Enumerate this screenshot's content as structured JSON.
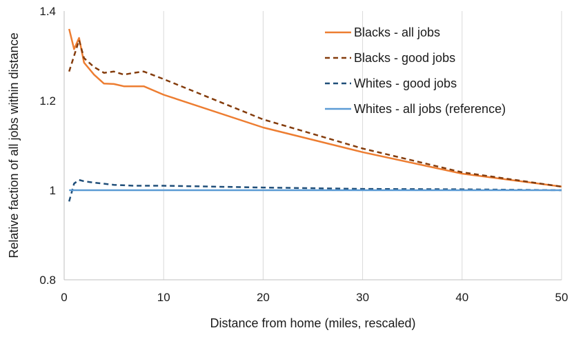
{
  "chart_data": {
    "type": "line",
    "title": "",
    "xlabel": "Distance from home (miles, rescaled)",
    "ylabel": "Relative faction of all jobs  within distance",
    "xlim": [
      0,
      50
    ],
    "ylim": [
      0.8,
      1.4
    ],
    "xticks": [
      0,
      10,
      20,
      30,
      40,
      50
    ],
    "xtick_labels": [
      "0",
      "10",
      "20",
      "30",
      "40",
      "50"
    ],
    "yticks": [
      0.8,
      1.0,
      1.2,
      1.4
    ],
    "ytick_labels": [
      "0.8",
      "1",
      "1.2",
      "1.4"
    ],
    "grid": "vertical",
    "legend_position": "top-right",
    "series": [
      {
        "name": "Blacks - all jobs",
        "color": "#ed7d31",
        "dash": "solid",
        "x": [
          0.5,
          1,
          1.5,
          2,
          3,
          4,
          5,
          6,
          7,
          8,
          10,
          20,
          30,
          40,
          50
        ],
        "y": [
          1.36,
          1.315,
          1.34,
          1.285,
          1.258,
          1.238,
          1.237,
          1.232,
          1.232,
          1.232,
          1.213,
          1.14,
          1.085,
          1.037,
          1.008
        ]
      },
      {
        "name": "Blacks - good jobs",
        "color": "#843c0c",
        "dash": "dashed",
        "x": [
          0.5,
          1,
          1.5,
          2,
          3,
          4,
          5,
          6,
          7,
          8,
          10,
          20,
          30,
          40,
          50
        ],
        "y": [
          1.265,
          1.3,
          1.335,
          1.295,
          1.275,
          1.262,
          1.265,
          1.258,
          1.262,
          1.265,
          1.248,
          1.158,
          1.093,
          1.04,
          1.008
        ]
      },
      {
        "name": "Whites - good jobs",
        "color": "#1f4e79",
        "dash": "dashed",
        "x": [
          0.5,
          1,
          1.5,
          2,
          3,
          5,
          7,
          10,
          20,
          30,
          40,
          50
        ],
        "y": [
          0.975,
          1.015,
          1.023,
          1.02,
          1.017,
          1.012,
          1.01,
          1.01,
          1.006,
          1.003,
          1.002,
          1.0
        ]
      },
      {
        "name": "Whites - all jobs (reference)",
        "color": "#5b9bd5",
        "dash": "solid",
        "x": [
          0.5,
          50
        ],
        "y": [
          1.0,
          1.0
        ]
      }
    ]
  }
}
